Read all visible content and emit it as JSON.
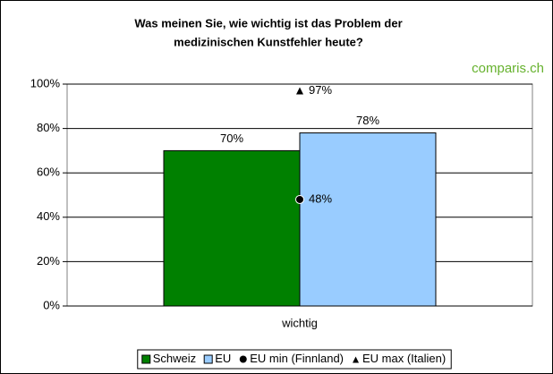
{
  "chart_data": {
    "type": "bar",
    "title": [
      "Was meinen Sie, wie wichtig ist das Problem der",
      "medizinischen Kunstfehler heute?"
    ],
    "logo": "comparis.ch",
    "categories": [
      "wichtig"
    ],
    "series": [
      {
        "name": "Schweiz",
        "color": "#008000",
        "kind": "bar",
        "values": [
          70
        ],
        "value_labels": [
          "70%"
        ]
      },
      {
        "name": "EU",
        "color": "#99ccff",
        "kind": "bar",
        "values": [
          78
        ],
        "value_labels": [
          "78%"
        ]
      },
      {
        "name": "EU min (Finnland)",
        "color": "#000000",
        "kind": "circle",
        "values": [
          48
        ],
        "value_labels": [
          "48%"
        ]
      },
      {
        "name": "EU max (Italien)",
        "color": "#000000",
        "kind": "triangle",
        "values": [
          97
        ],
        "value_labels": [
          "97%"
        ]
      }
    ],
    "ylim": [
      0,
      100
    ],
    "yticks": [
      {
        "value": 0,
        "label": "0%"
      },
      {
        "value": 20,
        "label": "20%"
      },
      {
        "value": 40,
        "label": "40%"
      },
      {
        "value": 60,
        "label": "60%"
      },
      {
        "value": 80,
        "label": "80%"
      },
      {
        "value": 100,
        "label": "100%"
      }
    ],
    "grid": true,
    "legend": "bottom"
  }
}
